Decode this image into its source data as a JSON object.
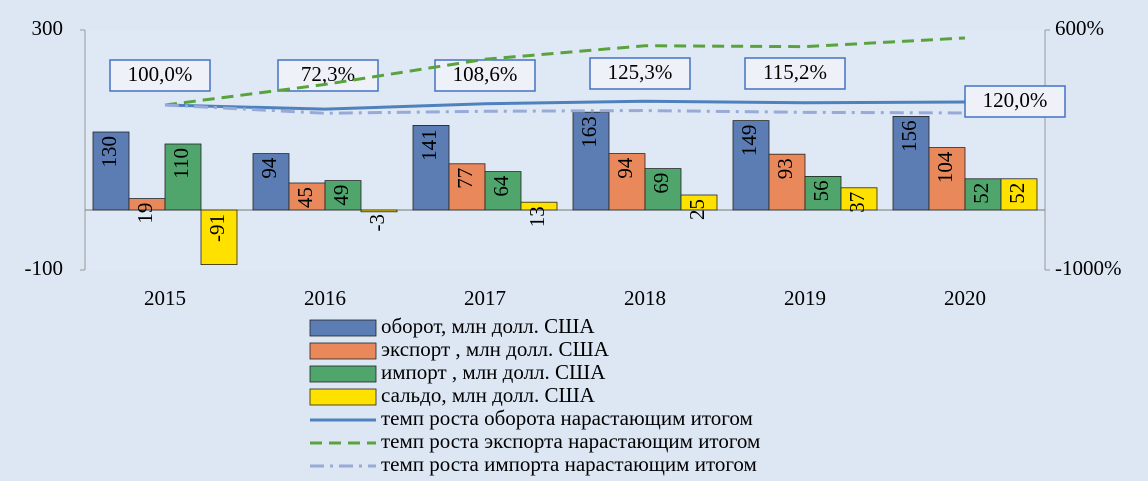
{
  "chart_data": {
    "type": "bar",
    "categories": [
      "2015",
      "2016",
      "2017",
      "2018",
      "2019",
      "2020"
    ],
    "ylim": [
      -100,
      300
    ],
    "yticks": [
      -100,
      300
    ],
    "y2lim": [
      -1000,
      600
    ],
    "y2ticks": [
      {
        "value": -1000,
        "label": "-1000%"
      },
      {
        "value": 600,
        "label": "600%"
      }
    ],
    "series": [
      {
        "name": "оборот, млн долл. США",
        "type": "bar",
        "color": "#5b7db3",
        "values": [
          130,
          94,
          141,
          163,
          149,
          156
        ]
      },
      {
        "name": "экспорт , млн долл. США",
        "type": "bar",
        "color": "#e9895b",
        "values": [
          19,
          45,
          77,
          94,
          93,
          104
        ]
      },
      {
        "name": "импорт , млн долл. США",
        "type": "bar",
        "color": "#4fa56c",
        "values": [
          110,
          49,
          64,
          69,
          56,
          52
        ]
      },
      {
        "name": "сальдо, млн долл. США",
        "type": "bar",
        "color": "#ffe100",
        "values": [
          -91,
          -3,
          13,
          25,
          37,
          52
        ]
      },
      {
        "name": "темп роста оборота нарастающим итогом",
        "type": "line",
        "axis": "y2",
        "color": "#4f81bd",
        "dash": "solid",
        "values": [
          100,
          72.3,
          108.6,
          125.3,
          115.2,
          120
        ],
        "value_labels": [
          "100,0%",
          "72,3%",
          "108,6%",
          "125,3%",
          "115,2%",
          "120,0%"
        ]
      },
      {
        "name": "темп роста экспорта нарастающим итогом",
        "type": "line",
        "axis": "y2",
        "color": "#5aa33c",
        "dash": "dashed",
        "values": [
          100,
          237,
          405,
          495,
          489,
          547
        ]
      },
      {
        "name": "темп роста импорта нарастающим итогом",
        "type": "line",
        "axis": "y2",
        "color": "#97aad8",
        "dash": "dashdot",
        "values": [
          100,
          45,
          58,
          63,
          51,
          47
        ]
      }
    ]
  }
}
